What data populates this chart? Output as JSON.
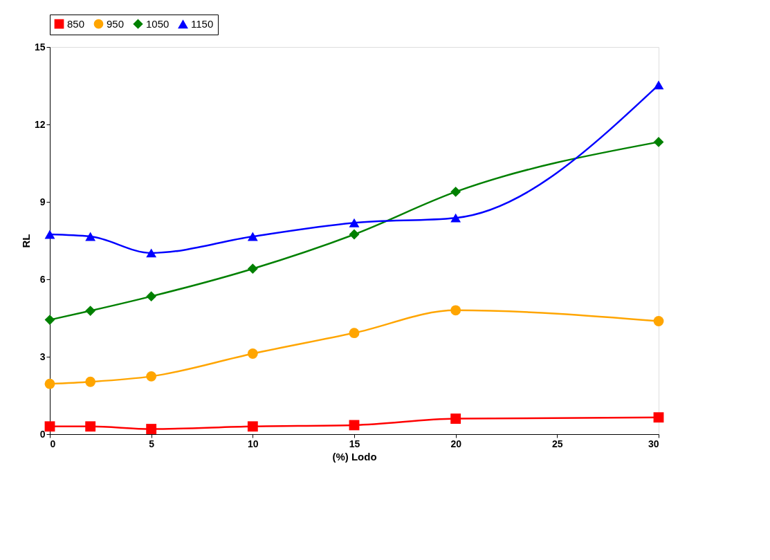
{
  "chart_data": {
    "type": "line",
    "xlabel": "(%) Lodo",
    "ylabel": "RL",
    "x": [
      0,
      2,
      5,
      10,
      15,
      20,
      30
    ],
    "xlim": [
      0,
      30
    ],
    "xticks": [
      0,
      5,
      10,
      15,
      20,
      25,
      30
    ],
    "ylim": [
      0,
      15
    ],
    "yticks": [
      0,
      3,
      6,
      9,
      12,
      15
    ],
    "grid": false,
    "legend": "top",
    "series": [
      {
        "name": "850",
        "color": "#ff0000",
        "marker": "square",
        "values": [
          0.3,
          0.3,
          0.2,
          0.3,
          0.35,
          0.6,
          0.65
        ]
      },
      {
        "name": "950",
        "color": "#ffa500",
        "marker": "circle",
        "values": [
          1.95,
          2.03,
          2.24,
          3.12,
          3.92,
          4.8,
          4.38
        ]
      },
      {
        "name": "1050",
        "color": "#008000",
        "marker": "diamond",
        "values": [
          4.43,
          4.78,
          5.34,
          6.41,
          7.74,
          9.39,
          11.32
        ]
      },
      {
        "name": "1150",
        "color": "#0000ff",
        "marker": "triangle",
        "values": [
          7.74,
          7.66,
          7.02,
          7.66,
          8.19,
          8.38,
          13.53
        ]
      }
    ]
  }
}
